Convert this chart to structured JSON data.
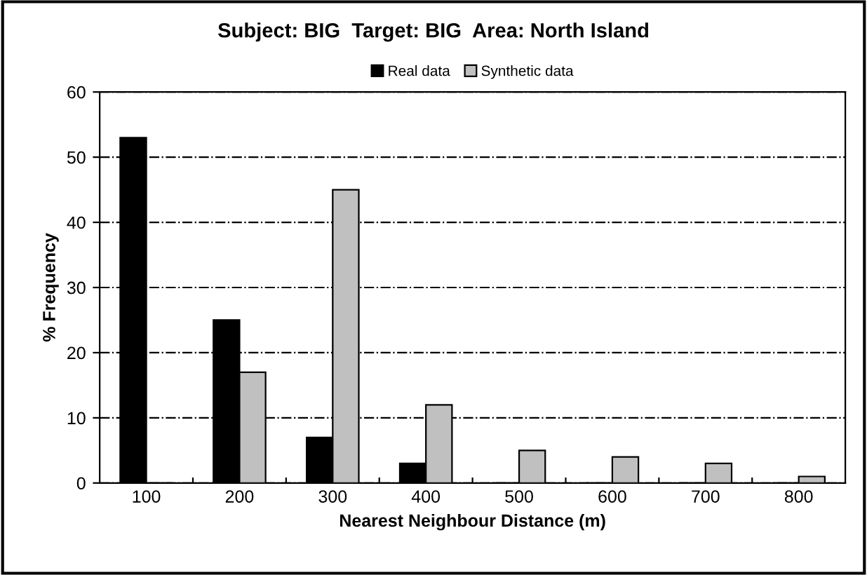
{
  "chart_data": {
    "type": "bar",
    "title": "Subject: BIG  Target: BIG  Area: North Island",
    "categories": [
      "100",
      "200",
      "300",
      "400",
      "500",
      "600",
      "700",
      "800"
    ],
    "series": [
      {
        "name": "Real data",
        "color": "#000000",
        "values": [
          53,
          25,
          7,
          3,
          0,
          0,
          0,
          0
        ]
      },
      {
        "name": "Synthetic data",
        "color": "#c0c0c0",
        "values": [
          0,
          17,
          45,
          12,
          5,
          4,
          3,
          1
        ]
      }
    ],
    "xlabel": "Nearest Neighbour Distance (m)",
    "ylabel": "% Frequency",
    "ylim": [
      0,
      60
    ],
    "yticks": [
      0,
      10,
      20,
      30,
      40,
      50,
      60
    ],
    "grid": "y",
    "legend": "top"
  }
}
